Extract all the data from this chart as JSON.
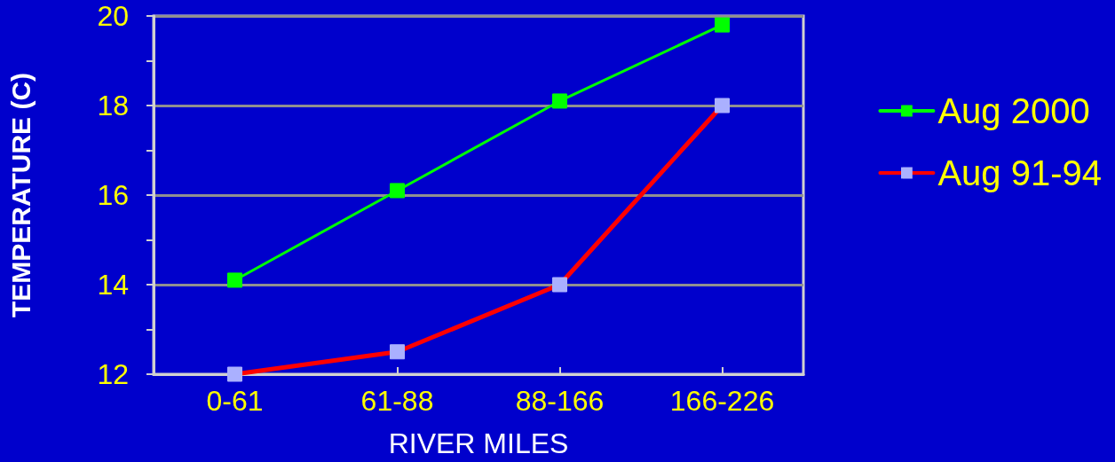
{
  "chart_data": {
    "type": "line",
    "xlabel": "RIVER MILES",
    "ylabel": "TEMPERATURE (C)",
    "categories": [
      "0-61",
      "61-88",
      "88-166",
      "166-226"
    ],
    "series": [
      {
        "name": "Aug 2000",
        "color": "#00ff00",
        "values": [
          14.1,
          16.1,
          18.1,
          19.8
        ]
      },
      {
        "name": "Aug 91-94",
        "color": "#ff0000",
        "values": [
          12,
          12.5,
          14,
          18
        ]
      }
    ],
    "ylim": [
      12,
      20
    ],
    "yticks": [
      12,
      {
        "value": 13,
        "label": null
      },
      14,
      {
        "value": 15,
        "label": null
      },
      16,
      {
        "value": 17,
        "label": null
      },
      18,
      {
        "value": 19,
        "label": null
      },
      20
    ],
    "grid": "y",
    "legend": "right",
    "marker": "square",
    "line_style": "solid"
  }
}
